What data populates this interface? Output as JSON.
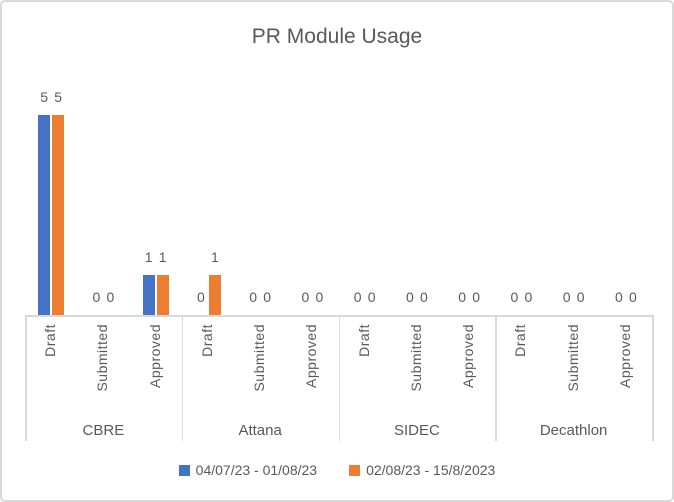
{
  "colors": {
    "series_blue": "#4472C4",
    "series_orange": "#ED7D31",
    "text": "#595959",
    "axis_line": "#D9D9D9",
    "background": "#FFFFFF"
  },
  "chart_data": {
    "type": "bar",
    "title": "PR Module Usage",
    "groups": [
      "CBRE",
      "Attana",
      "SIDEC",
      "Decathlon"
    ],
    "categories": [
      "Draft",
      "Submitted",
      "Approved"
    ],
    "series": [
      {
        "name": "04/07/23 - 01/08/23",
        "color": "#4472C4",
        "values": [
          [
            5,
            0,
            1
          ],
          [
            0,
            0,
            0
          ],
          [
            0,
            0,
            0
          ],
          [
            0,
            0,
            0
          ]
        ]
      },
      {
        "name": "02/08/23 - 15/8/2023",
        "color": "#ED7D31",
        "values": [
          [
            5,
            0,
            1
          ],
          [
            1,
            0,
            0
          ],
          [
            0,
            0,
            0
          ],
          [
            0,
            0,
            0
          ]
        ]
      }
    ],
    "ylim": [
      0,
      5
    ],
    "y_axis_visible": false,
    "grid": false,
    "data_labels": true,
    "category_label_rotation": "vertical",
    "legend_position": "bottom"
  }
}
